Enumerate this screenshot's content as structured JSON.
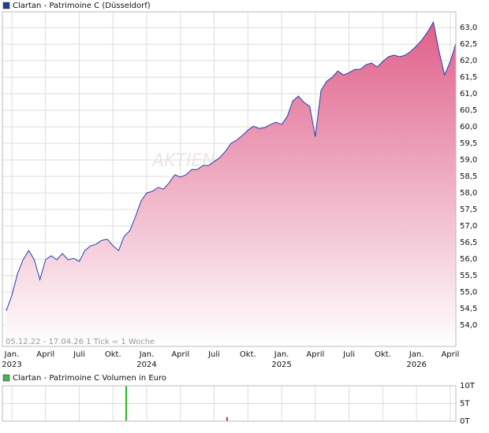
{
  "chart_data": [
    {
      "type": "line",
      "title": "Clartan - Patrimoine C (Düsseldorf)",
      "caption": "05.12.22 - 17.04.26   1 Tick = 1 Woche",
      "watermark": "AKTIEN",
      "legend_color": "#1f3d99",
      "xlim": [
        -0.84,
        39.5
      ],
      "ylim": [
        53.36,
        63.48
      ],
      "grid": true,
      "fill_gradient": [
        "#e0608a",
        "#ffffff"
      ],
      "xticks": [
        {
          "value": 0,
          "label": "Jan."
        },
        {
          "value": 3,
          "label": "April"
        },
        {
          "value": 6,
          "label": "Juli"
        },
        {
          "value": 9,
          "label": "Okt."
        },
        {
          "value": 12,
          "label": "Jan."
        },
        {
          "value": 15,
          "label": "April"
        },
        {
          "value": 18,
          "label": "Juli"
        },
        {
          "value": 21,
          "label": "Okt."
        },
        {
          "value": 24,
          "label": "Jan."
        },
        {
          "value": 27,
          "label": "April"
        },
        {
          "value": 30,
          "label": "Juli"
        },
        {
          "value": 33,
          "label": "Okt."
        },
        {
          "value": 36,
          "label": "Jan."
        },
        {
          "value": 39,
          "label": "April"
        }
      ],
      "xyears": [
        {
          "value": 0,
          "label": "2023"
        },
        {
          "value": 12,
          "label": "2024"
        },
        {
          "value": 24,
          "label": "2025"
        },
        {
          "value": 36,
          "label": "2026"
        }
      ],
      "yticks": [
        {
          "value": 54,
          "label": "54,0"
        },
        {
          "value": 54.5,
          "label": "54,5"
        },
        {
          "value": 55,
          "label": "55,0"
        },
        {
          "value": 55.5,
          "label": "55,5"
        },
        {
          "value": 56,
          "label": "56,0"
        },
        {
          "value": 56.5,
          "label": "56,5"
        },
        {
          "value": 57,
          "label": "57,0"
        },
        {
          "value": 57.5,
          "label": "57,5"
        },
        {
          "value": 58,
          "label": "58,0"
        },
        {
          "value": 58.5,
          "label": "58,5"
        },
        {
          "value": 59,
          "label": "59,0"
        },
        {
          "value": 59.5,
          "label": "59,5"
        },
        {
          "value": 60,
          "label": "60,0"
        },
        {
          "value": 60.5,
          "label": "60,5"
        },
        {
          "value": 61,
          "label": "61,0"
        },
        {
          "value": 61.5,
          "label": "61,5"
        },
        {
          "value": 62,
          "label": "62,0"
        },
        {
          "value": 62.5,
          "label": "62,5"
        },
        {
          "value": 63,
          "label": "63,0"
        }
      ],
      "series": [
        {
          "color": "#2040b0",
          "x": [
            -0.5,
            0,
            0.5,
            1,
            1.5,
            2,
            2.5,
            3,
            3.5,
            4,
            4.5,
            5,
            5.5,
            6,
            6.5,
            7,
            7.5,
            8,
            8.5,
            9,
            9.5,
            10,
            10.5,
            11,
            11.5,
            12,
            12.5,
            13,
            13.5,
            14,
            14.5,
            15,
            15.5,
            16,
            16.5,
            17,
            17.5,
            18,
            18.5,
            19,
            19.5,
            20,
            20.5,
            21,
            21.5,
            22,
            22.5,
            23,
            23.5,
            24,
            24.5,
            25,
            25.5,
            26,
            26.5,
            27,
            27.5,
            28,
            28.5,
            29,
            29.5,
            30,
            30.5,
            31,
            31.5,
            32,
            32.5,
            33,
            33.5,
            34,
            34.5,
            35,
            35.5,
            36,
            36.5,
            37,
            37.5,
            38,
            38.5,
            39,
            39.5
          ],
          "values": [
            54.43,
            54.9,
            55.55,
            55.98,
            56.26,
            55.98,
            55.38,
            55.98,
            56.1,
            55.98,
            56.17,
            55.98,
            56.02,
            55.93,
            56.26,
            56.4,
            56.45,
            56.57,
            56.6,
            56.4,
            56.26,
            56.69,
            56.86,
            57.29,
            57.76,
            58.0,
            58.05,
            58.17,
            58.12,
            58.31,
            58.55,
            58.48,
            58.55,
            58.71,
            58.71,
            58.83,
            58.83,
            58.95,
            59.07,
            59.26,
            59.5,
            59.6,
            59.74,
            59.9,
            60.02,
            59.95,
            59.98,
            60.07,
            60.14,
            60.07,
            60.31,
            60.79,
            60.93,
            60.74,
            60.62,
            59.7,
            61.1,
            61.38,
            61.5,
            61.69,
            61.57,
            61.64,
            61.74,
            61.74,
            61.88,
            61.93,
            61.81,
            61.98,
            62.12,
            62.17,
            62.12,
            62.17,
            62.29,
            62.45,
            62.64,
            62.88,
            63.17,
            62.29,
            61.57,
            61.98,
            62.52
          ]
        }
      ]
    },
    {
      "type": "bar",
      "title": "Clartan - Patrimoine C Volumen in Euro",
      "legend_color": "#4caf50",
      "xlim": [
        -0.84,
        39.5
      ],
      "ylim": [
        0,
        10000
      ],
      "grid": true,
      "yticks": [
        {
          "value": 0,
          "label": "0T"
        },
        {
          "value": 5000,
          "label": "5T"
        },
        {
          "value": 10000,
          "label": "10T"
        }
      ],
      "x": [
        10.17,
        19.15
      ],
      "values": [
        10000,
        1100
      ],
      "colors": [
        "#22bb22",
        "#dd2222"
      ]
    }
  ]
}
